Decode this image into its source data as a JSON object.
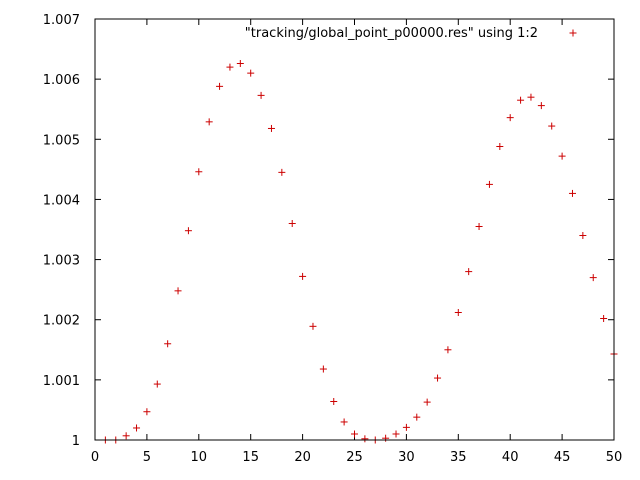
{
  "chart_data": {
    "type": "scatter",
    "title": "",
    "xlabel": "",
    "ylabel": "",
    "xlim": [
      0,
      50
    ],
    "ylim": [
      1.0,
      1.007
    ],
    "x_ticks": [
      0,
      5,
      10,
      15,
      20,
      25,
      30,
      35,
      40,
      45,
      50
    ],
    "y_ticks": [
      1.0,
      1.001,
      1.002,
      1.003,
      1.004,
      1.005,
      1.006,
      1.007
    ],
    "x_tick_labels": [
      "0",
      "5",
      "10",
      "15",
      "20",
      "25",
      "30",
      "35",
      "40",
      "45",
      "50"
    ],
    "y_tick_labels": [
      "1",
      "1.001",
      "1.002",
      "1.003",
      "1.004",
      "1.005",
      "1.006",
      "1.007"
    ],
    "grid": false,
    "legend_position": "top-right",
    "marker": "plus",
    "series": [
      {
        "name": "\"tracking/global_point_p00000.res\" using 1:2",
        "color": "#cc0000",
        "x": [
          1,
          2,
          3,
          4,
          5,
          6,
          7,
          8,
          9,
          10,
          11,
          12,
          13,
          14,
          15,
          16,
          17,
          18,
          19,
          20,
          21,
          22,
          23,
          24,
          25,
          26,
          27,
          28,
          29,
          30,
          31,
          32,
          33,
          34,
          35,
          36,
          37,
          38,
          39,
          40,
          41,
          42,
          43,
          44,
          45,
          46,
          47,
          48,
          49,
          50
        ],
        "y": [
          1.0,
          1.0,
          1.00007,
          1.0002,
          1.00047,
          1.00093,
          1.0016,
          1.00248,
          1.00348,
          1.00446,
          1.00529,
          1.00588,
          1.0062,
          1.00626,
          1.0061,
          1.00573,
          1.00518,
          1.00445,
          1.0036,
          1.00272,
          1.00189,
          1.00118,
          1.00064,
          1.0003,
          1.0001,
          1.00002,
          1.0,
          1.00003,
          1.0001,
          1.00021,
          1.00038,
          1.00063,
          1.00103,
          1.0015,
          1.00212,
          1.0028,
          1.00355,
          1.00425,
          1.00488,
          1.00536,
          1.00565,
          1.0057,
          1.00556,
          1.00522,
          1.00472,
          1.0041,
          1.0034,
          1.0027,
          1.00202,
          1.00143
        ]
      }
    ]
  }
}
